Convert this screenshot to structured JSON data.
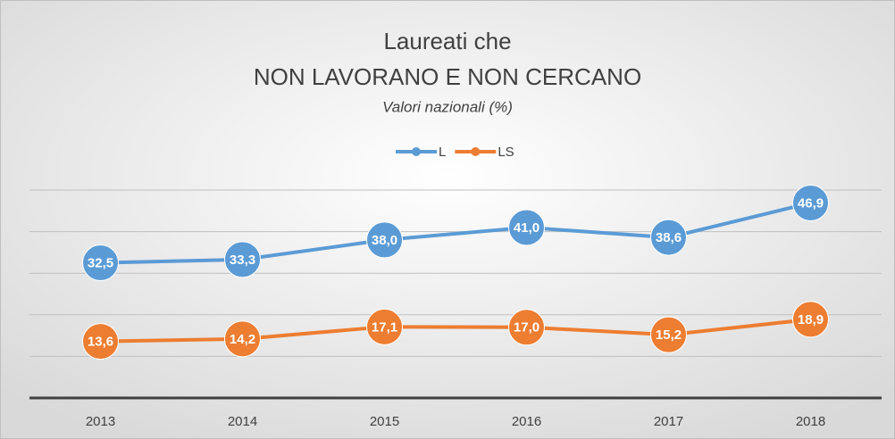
{
  "chart_data": {
    "type": "line",
    "title": [
      "Laureati che",
      "NON LAVORANO E NON CERCANO"
    ],
    "subtitle": "Valori nazionali (%)",
    "categories": [
      "2013",
      "2014",
      "2015",
      "2016",
      "2017",
      "2018"
    ],
    "series": [
      {
        "name": "L",
        "color": "#5b9bd5",
        "values": [
          32.5,
          33.3,
          38.0,
          41.0,
          38.6,
          46.9
        ],
        "value_labels": [
          "32,5",
          "33,3",
          "38,0",
          "41,0",
          "38,6",
          "46,9"
        ]
      },
      {
        "name": "LS",
        "color": "#ed7d31",
        "values": [
          13.6,
          14.2,
          17.1,
          17.0,
          15.2,
          18.9
        ],
        "value_labels": [
          "13,6",
          "14,2",
          "17,1",
          "17,0",
          "15,2",
          "18,9"
        ]
      }
    ],
    "ylim": [
      0,
      50
    ],
    "yticks": [
      0,
      10,
      20,
      30,
      40,
      50
    ],
    "grid": true,
    "legend": "top"
  }
}
